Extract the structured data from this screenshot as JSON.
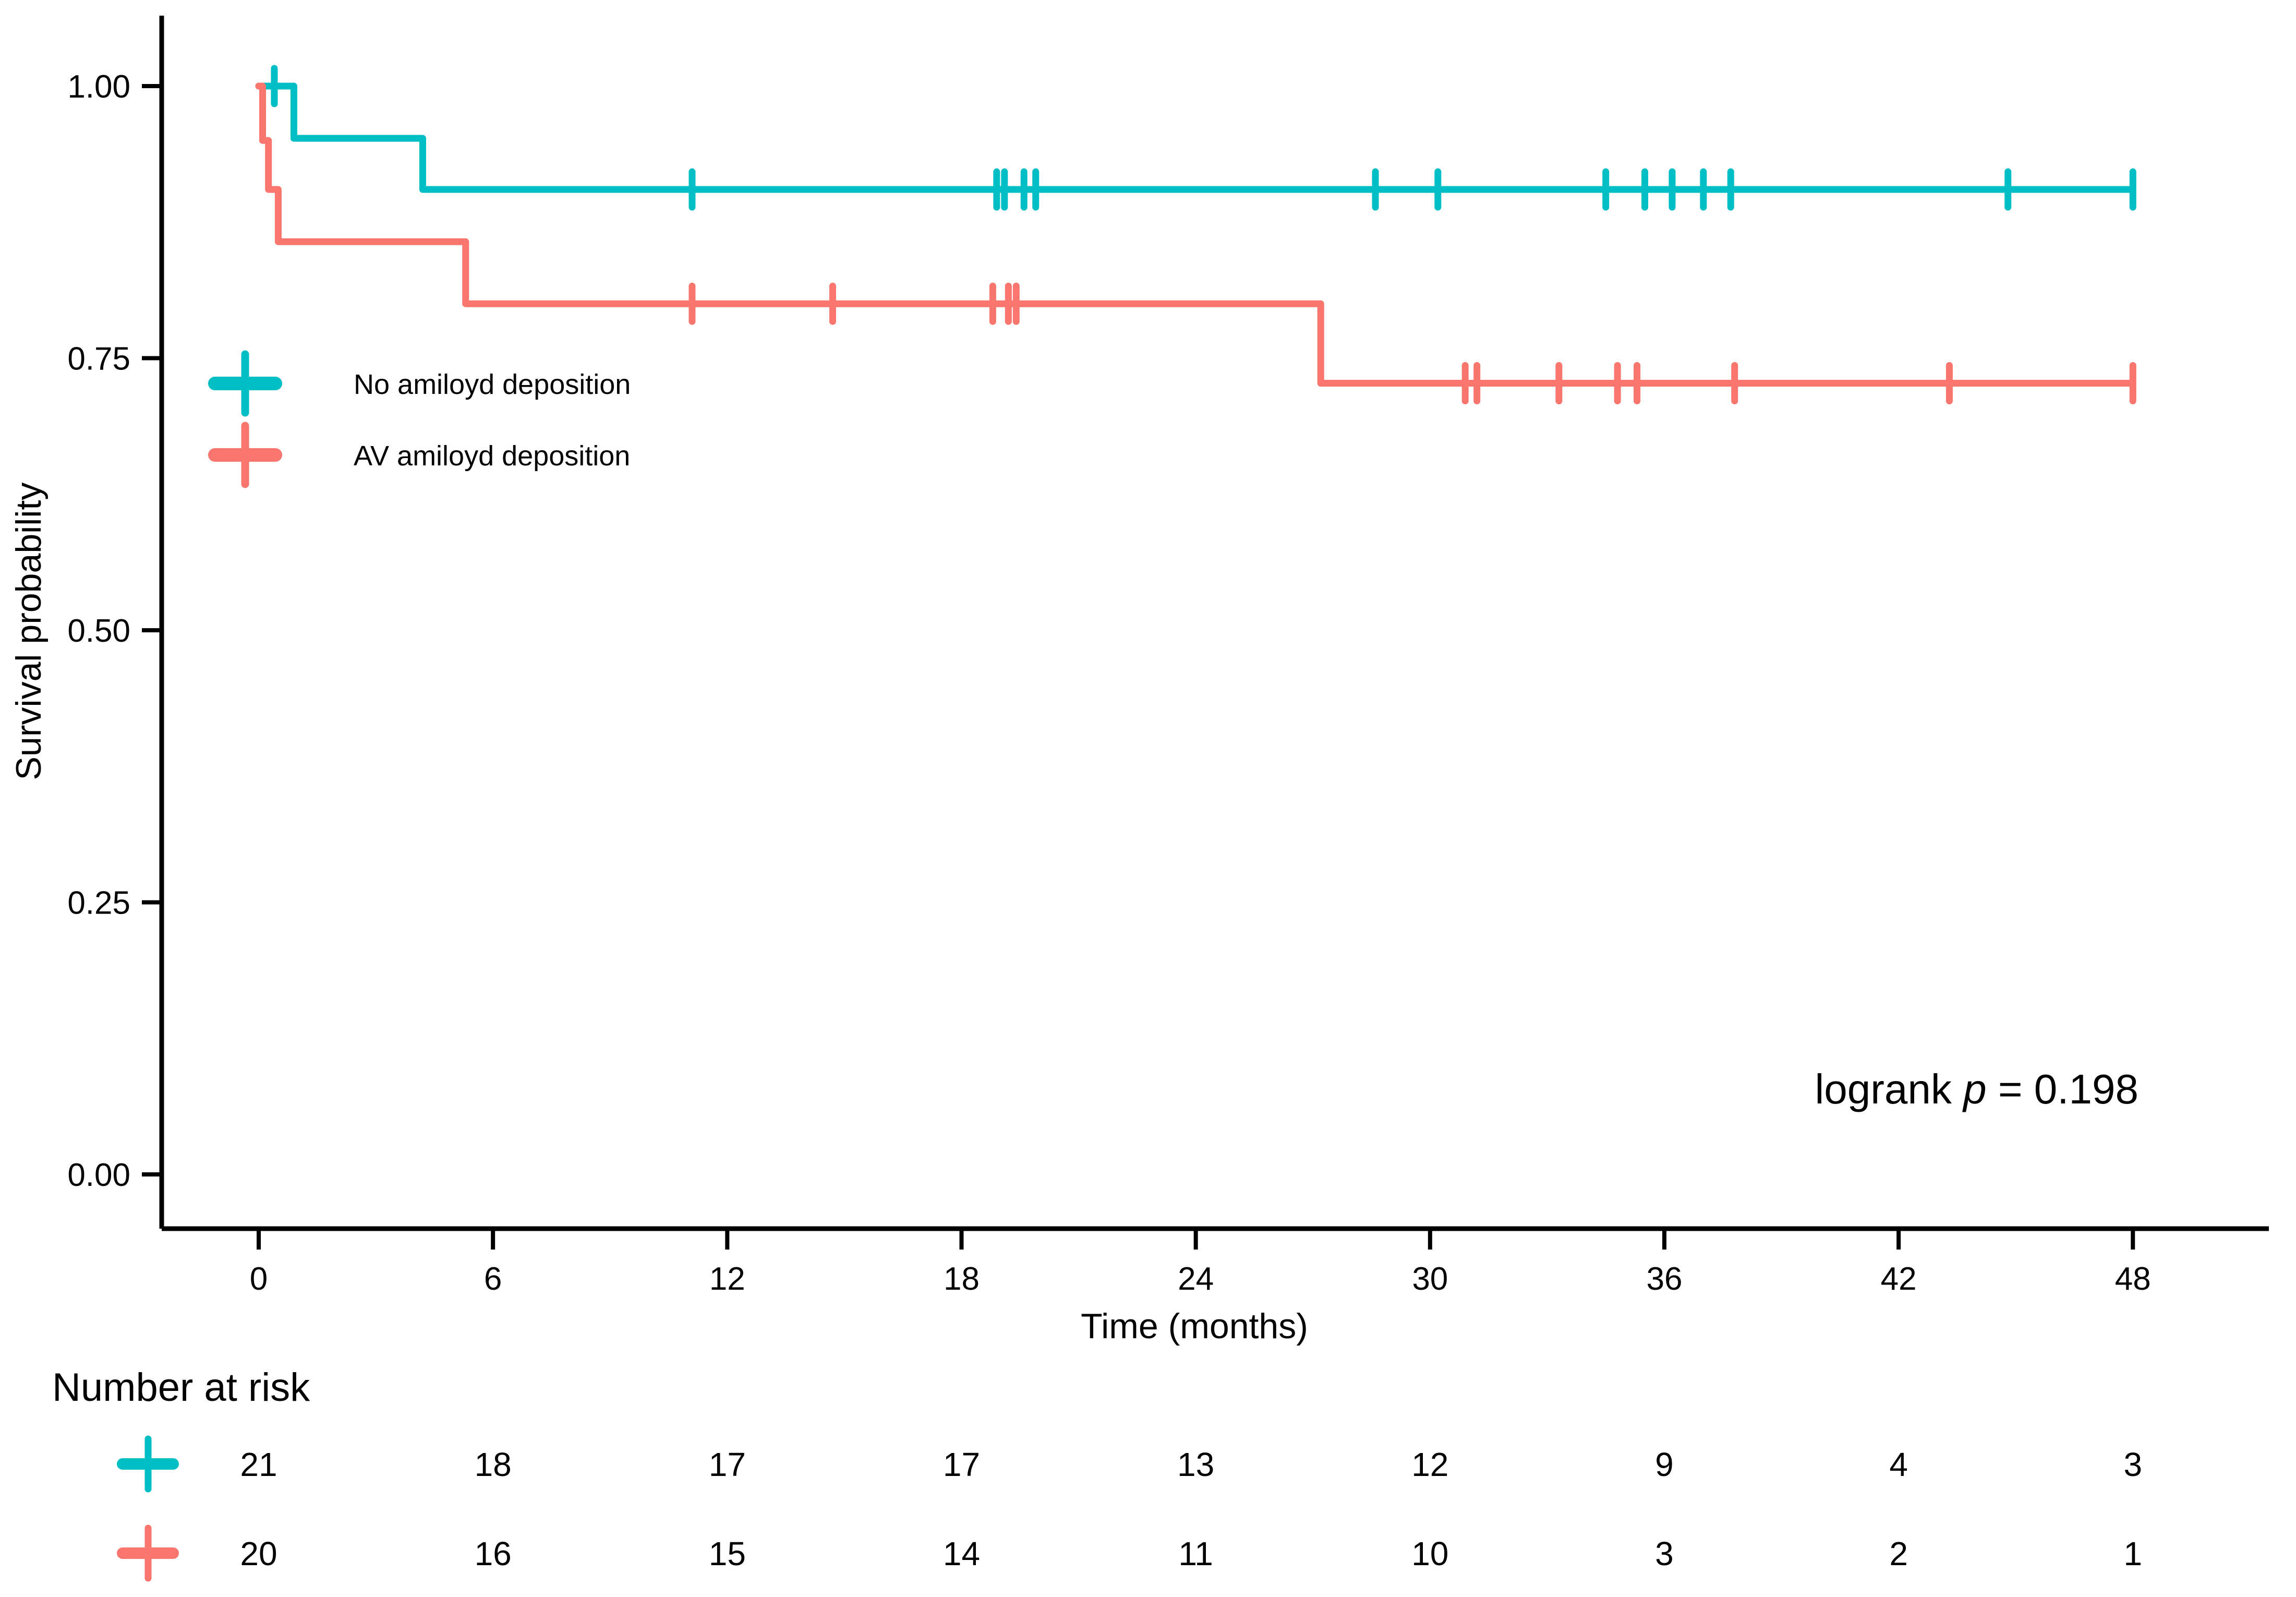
{
  "colors": {
    "group1": "#00BFC4",
    "group2": "#F8766D",
    "axis": "#000000",
    "text": "#000000",
    "background": "#FFFFFF"
  },
  "y_axis": {
    "title": "Survival probability",
    "ticks": [
      "1.00",
      "0.75",
      "0.50",
      "0.25",
      "0.00"
    ],
    "tick_values": [
      1.0,
      0.75,
      0.5,
      0.25,
      0.0
    ]
  },
  "x_axis": {
    "title": "Time (months)",
    "ticks": [
      "0",
      "6",
      "12",
      "18",
      "24",
      "30",
      "36",
      "42",
      "48"
    ],
    "tick_values": [
      0,
      6,
      12,
      18,
      24,
      30,
      36,
      42,
      48
    ]
  },
  "legend": {
    "items": [
      {
        "label": "No amiloyd deposition",
        "color_key": "group1"
      },
      {
        "label": "AV amiloyd deposition",
        "color_key": "group2"
      }
    ]
  },
  "annotation": {
    "text_prefix": "logrank ",
    "p_symbol": "p",
    "text_suffix": " = 0.198"
  },
  "risk_table": {
    "title": "Number at risk",
    "time_points": [
      0,
      6,
      12,
      18,
      24,
      30,
      36,
      42,
      48
    ],
    "rows": [
      {
        "group": "No amiloyd deposition",
        "color_key": "group1",
        "counts": [
          21,
          18,
          17,
          17,
          13,
          12,
          9,
          4,
          3
        ]
      },
      {
        "group": "AV amiloyd deposition",
        "color_key": "group2",
        "counts": [
          20,
          16,
          15,
          14,
          11,
          10,
          3,
          2,
          1
        ]
      }
    ]
  },
  "chart_data": {
    "type": "line",
    "subtype": "kaplan-meier-step",
    "title": "",
    "xlabel": "Time (months)",
    "ylabel": "Survival probability",
    "xlim": [
      0,
      48
    ],
    "ylim": [
      0,
      1
    ],
    "x_ticks": [
      0,
      6,
      12,
      18,
      24,
      30,
      36,
      42,
      48
    ],
    "y_ticks": [
      0,
      0.25,
      0.5,
      0.75,
      1.0
    ],
    "grid": false,
    "legend_position": "inside-upper-left",
    "annotation": "logrank p = 0.198",
    "series": [
      {
        "name": "No amiloyd deposition",
        "color": "#00BFC4",
        "n_start": 21,
        "steps": [
          [
            0,
            1.0
          ],
          [
            0.9,
            0.952
          ],
          [
            4.2,
            0.905
          ]
        ],
        "end_time": 48,
        "censor_marks": [
          [
            0.4,
            1.0
          ],
          [
            11.1,
            0.905
          ],
          [
            18.9,
            0.905
          ],
          [
            19.1,
            0.905
          ],
          [
            19.6,
            0.905
          ],
          [
            19.9,
            0.905
          ],
          [
            28.6,
            0.905
          ],
          [
            30.2,
            0.905
          ],
          [
            34.5,
            0.905
          ],
          [
            35.5,
            0.905
          ],
          [
            36.2,
            0.905
          ],
          [
            37.0,
            0.905
          ],
          [
            37.7,
            0.905
          ],
          [
            44.8,
            0.905
          ],
          [
            48,
            0.905
          ]
        ]
      },
      {
        "name": "AV amiloyd deposition",
        "color": "#F8766D",
        "n_start": 20,
        "steps": [
          [
            0,
            1.0
          ],
          [
            0.1,
            0.95
          ],
          [
            0.25,
            0.905
          ],
          [
            0.5,
            0.857
          ],
          [
            5.3,
            0.8
          ],
          [
            27.2,
            0.727
          ]
        ],
        "end_time": 48,
        "censor_marks": [
          [
            11.1,
            0.8
          ],
          [
            14.7,
            0.8
          ],
          [
            18.8,
            0.8
          ],
          [
            19.2,
            0.8
          ],
          [
            19.4,
            0.8
          ],
          [
            30.9,
            0.727
          ],
          [
            31.2,
            0.727
          ],
          [
            33.3,
            0.727
          ],
          [
            34.8,
            0.727
          ],
          [
            35.3,
            0.727
          ],
          [
            37.8,
            0.727
          ],
          [
            43.3,
            0.727
          ],
          [
            48,
            0.727
          ]
        ]
      }
    ]
  }
}
